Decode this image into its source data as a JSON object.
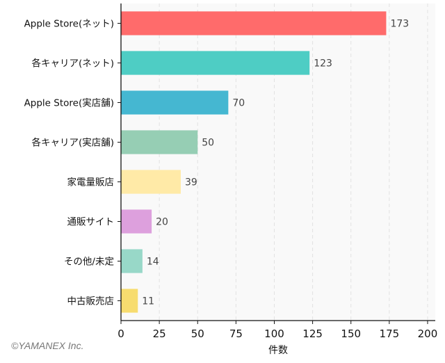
{
  "chart_data": {
    "type": "bar",
    "orientation": "horizontal",
    "categories": [
      "Apple Store(ネット)",
      "各キャリア(ネット)",
      "Apple Store(実店舗)",
      "各キャリア(実店舗)",
      "家電量販店",
      "通販サイト",
      "その他/未定",
      "中古販売店"
    ],
    "values": [
      173,
      123,
      70,
      50,
      39,
      20,
      14,
      11
    ],
    "colors": [
      "#ff6b6b",
      "#4ecdc4",
      "#45b7d1",
      "#96ceb4",
      "#ffeaa7",
      "#dda0dd",
      "#98d8c8",
      "#f7dc6f"
    ],
    "xlabel": "件数",
    "ylabel": "",
    "xlim": [
      0,
      205
    ],
    "xticks": [
      0,
      25,
      50,
      75,
      100,
      125,
      150,
      175,
      200
    ],
    "grid": true,
    "data_labels": true
  },
  "credit": "©YAMANEX Inc."
}
